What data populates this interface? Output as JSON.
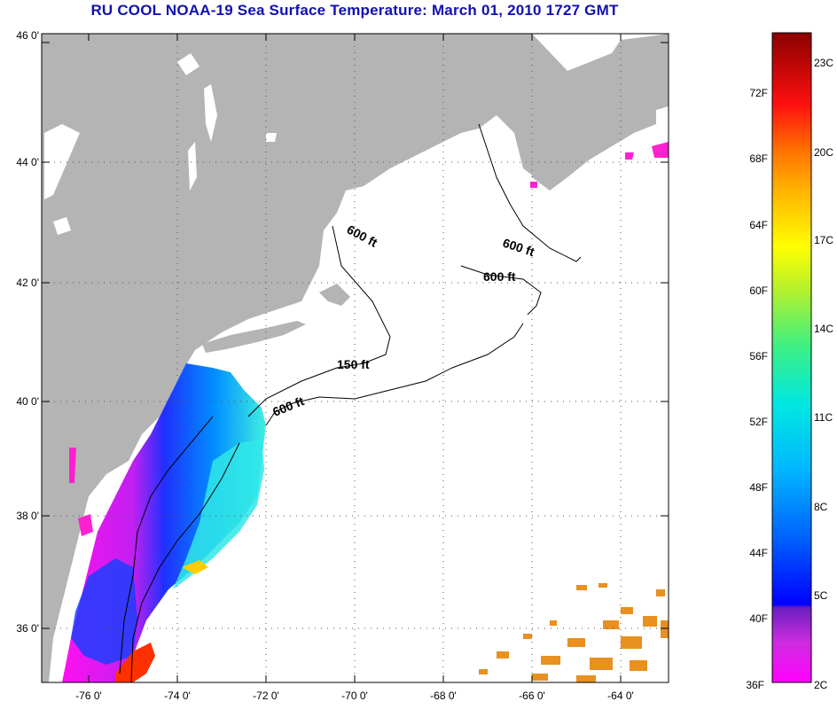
{
  "title": "RU COOL  NOAA-19  Sea Surface Temperature:  March 01, 2010 1727 GMT",
  "lat_labels": [
    "46 0'",
    "44 0'",
    "42 0'",
    "40 0'",
    "38 0'",
    "36 0'"
  ],
  "lon_labels": [
    "-76 0'",
    "-74 0'",
    "-72 0'",
    "-70 0'",
    "-68 0'",
    "-66 0'",
    "-64 0'"
  ],
  "contour_labels": [
    "600 ft",
    "600 ft",
    "600 ft",
    "150 ft",
    "600 ft"
  ],
  "colorbar": {
    "fahrenheit": [
      "72F",
      "68F",
      "64F",
      "60F",
      "56F",
      "52F",
      "48F",
      "44F",
      "40F",
      "36F"
    ],
    "celsius": [
      "23C",
      "20C",
      "17C",
      "14C",
      "11C",
      "8C",
      "5C",
      "2C"
    ]
  },
  "colors": {
    "land": "#b4b4b4",
    "title": "#1010b4",
    "grid": "#555555"
  }
}
